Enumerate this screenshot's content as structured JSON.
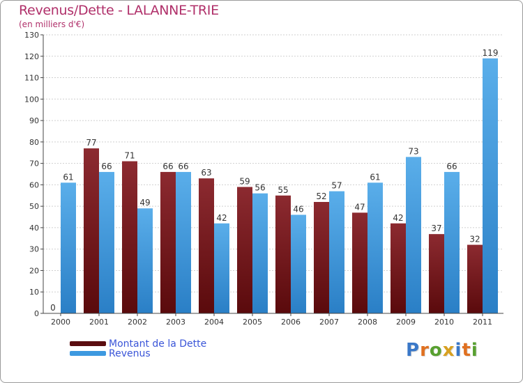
{
  "page": {
    "title": "Revenus/Dette - LALANNE-TRIE",
    "subtitle": "(en milliers d'€)"
  },
  "colors": {
    "title": "#b0306a",
    "dette": "#7a1418",
    "revenus": "#3d99e0",
    "legend_text": "#3a55d8",
    "axis": "#444444",
    "grid": "#cfcfcf"
  },
  "legend": {
    "items": [
      {
        "label": "Montant de la Dette",
        "color": "#5a0d10"
      },
      {
        "label": "Revenus",
        "color": "#3d99e0"
      }
    ]
  },
  "logo": {
    "text": "Proxiti",
    "letter_colors": [
      "#3a78c8",
      "#e07020",
      "#58a030",
      "#d8a020",
      "#3a78c8",
      "#e07020",
      "#58a030"
    ]
  },
  "chart_data": {
    "type": "bar",
    "title": "Revenus/Dette - LALANNE-TRIE",
    "ylabel": "(en milliers d'€)",
    "xlabel": "",
    "categories": [
      "2000",
      "2001",
      "2002",
      "2003",
      "2004",
      "2005",
      "2006",
      "2007",
      "2008",
      "2009",
      "2010",
      "2011"
    ],
    "series": [
      {
        "name": "Montant de la Dette",
        "values": [
          0,
          77,
          71,
          66,
          63,
          59,
          55,
          52,
          47,
          42,
          37,
          32
        ]
      },
      {
        "name": "Revenus",
        "values": [
          61,
          66,
          49,
          66,
          42,
          56,
          46,
          57,
          61,
          73,
          66,
          119
        ]
      }
    ],
    "ylim": [
      0,
      130
    ],
    "yticks": [
      0,
      10,
      20,
      30,
      40,
      50,
      60,
      70,
      80,
      90,
      100,
      110,
      120,
      130
    ],
    "grid": true,
    "legend_position": "bottom-left"
  }
}
